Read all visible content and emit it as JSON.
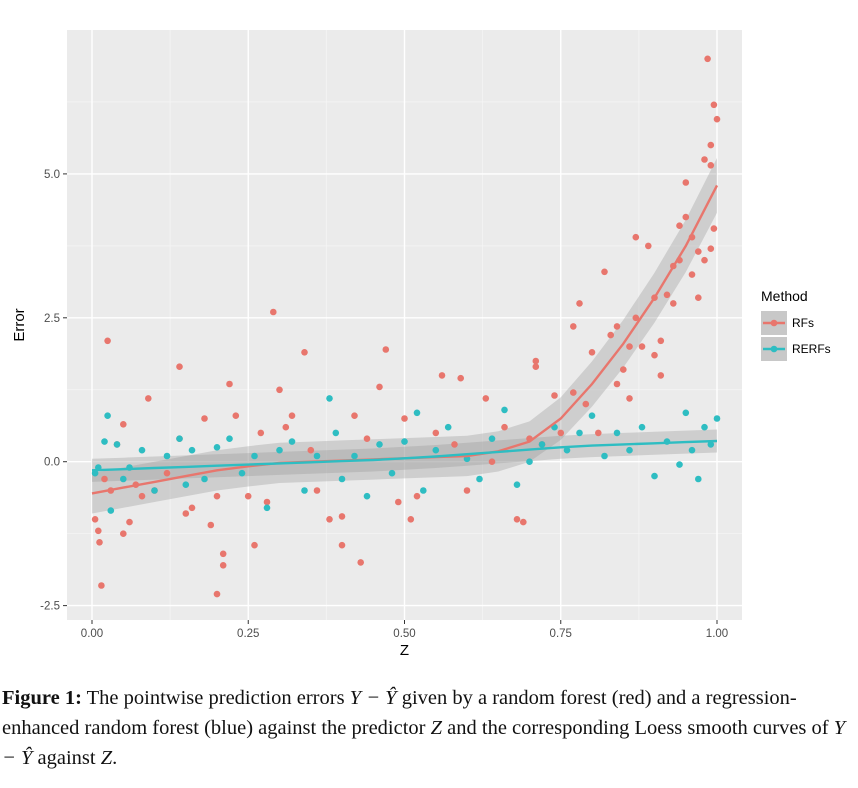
{
  "chart_data": {
    "type": "scatter",
    "xlabel": "Z",
    "ylabel": "Error",
    "xlim": [
      -0.04,
      1.04
    ],
    "ylim": [
      -2.75,
      7.5
    ],
    "xticks": [
      0.0,
      0.25,
      0.5,
      0.75,
      1.0
    ],
    "xtick_labels": [
      "0.00",
      "0.25",
      "0.50",
      "0.75",
      "1.00"
    ],
    "yticks": [
      -2.5,
      0.0,
      2.5,
      5.0
    ],
    "ytick_labels": [
      "-2.5",
      "0.0",
      "2.5",
      "5.0"
    ],
    "grid": true,
    "legend_title": "Method",
    "legend_placement": "right",
    "series": [
      {
        "name": "RFs",
        "color": "#E8766D",
        "points": [
          [
            0.005,
            -1.0
          ],
          [
            0.01,
            -1.2
          ],
          [
            0.012,
            -1.4
          ],
          [
            0.015,
            -2.15
          ],
          [
            0.02,
            -0.3
          ],
          [
            0.025,
            2.1
          ],
          [
            0.03,
            -0.5
          ],
          [
            0.04,
            0.3
          ],
          [
            0.05,
            0.65
          ],
          [
            0.05,
            -1.25
          ],
          [
            0.06,
            -1.05
          ],
          [
            0.07,
            -0.4
          ],
          [
            0.08,
            -0.6
          ],
          [
            0.09,
            1.1
          ],
          [
            0.1,
            -0.5
          ],
          [
            0.12,
            -0.2
          ],
          [
            0.14,
            1.65
          ],
          [
            0.14,
            0.4
          ],
          [
            0.15,
            -0.9
          ],
          [
            0.16,
            -0.8
          ],
          [
            0.18,
            0.75
          ],
          [
            0.19,
            -1.1
          ],
          [
            0.2,
            -0.6
          ],
          [
            0.2,
            -2.3
          ],
          [
            0.21,
            -1.6
          ],
          [
            0.21,
            -1.8
          ],
          [
            0.22,
            1.35
          ],
          [
            0.23,
            0.8
          ],
          [
            0.25,
            -0.6
          ],
          [
            0.26,
            -1.45
          ],
          [
            0.27,
            0.5
          ],
          [
            0.28,
            -0.7
          ],
          [
            0.29,
            2.6
          ],
          [
            0.3,
            1.25
          ],
          [
            0.31,
            0.6
          ],
          [
            0.32,
            0.8
          ],
          [
            0.34,
            1.9
          ],
          [
            0.35,
            0.2
          ],
          [
            0.36,
            -0.5
          ],
          [
            0.38,
            -1.0
          ],
          [
            0.4,
            -0.95
          ],
          [
            0.4,
            -1.45
          ],
          [
            0.42,
            0.8
          ],
          [
            0.43,
            -1.75
          ],
          [
            0.44,
            0.4
          ],
          [
            0.46,
            1.3
          ],
          [
            0.47,
            1.95
          ],
          [
            0.49,
            -0.7
          ],
          [
            0.5,
            0.75
          ],
          [
            0.51,
            -1.0
          ],
          [
            0.52,
            -0.6
          ],
          [
            0.55,
            0.5
          ],
          [
            0.56,
            1.5
          ],
          [
            0.58,
            0.3
          ],
          [
            0.59,
            1.45
          ],
          [
            0.6,
            -0.5
          ],
          [
            0.63,
            1.1
          ],
          [
            0.64,
            0.0
          ],
          [
            0.66,
            0.6
          ],
          [
            0.68,
            -1.0
          ],
          [
            0.69,
            -1.05
          ],
          [
            0.7,
            0.4
          ],
          [
            0.71,
            1.75
          ],
          [
            0.71,
            1.65
          ],
          [
            0.72,
            0.3
          ],
          [
            0.74,
            1.15
          ],
          [
            0.75,
            0.5
          ],
          [
            0.77,
            2.35
          ],
          [
            0.77,
            1.2
          ],
          [
            0.78,
            2.75
          ],
          [
            0.79,
            1.0
          ],
          [
            0.8,
            1.9
          ],
          [
            0.81,
            0.5
          ],
          [
            0.82,
            3.3
          ],
          [
            0.83,
            2.2
          ],
          [
            0.84,
            2.35
          ],
          [
            0.84,
            1.35
          ],
          [
            0.85,
            1.6
          ],
          [
            0.86,
            2.0
          ],
          [
            0.86,
            1.1
          ],
          [
            0.87,
            2.5
          ],
          [
            0.87,
            3.9
          ],
          [
            0.88,
            2.0
          ],
          [
            0.89,
            3.75
          ],
          [
            0.9,
            2.85
          ],
          [
            0.9,
            1.85
          ],
          [
            0.91,
            2.1
          ],
          [
            0.91,
            1.5
          ],
          [
            0.92,
            2.9
          ],
          [
            0.93,
            3.4
          ],
          [
            0.93,
            2.75
          ],
          [
            0.94,
            3.5
          ],
          [
            0.94,
            4.1
          ],
          [
            0.95,
            4.25
          ],
          [
            0.95,
            4.85
          ],
          [
            0.96,
            3.25
          ],
          [
            0.96,
            3.9
          ],
          [
            0.97,
            3.65
          ],
          [
            0.97,
            2.85
          ],
          [
            0.98,
            3.5
          ],
          [
            0.98,
            5.25
          ],
          [
            0.985,
            7.0
          ],
          [
            0.99,
            3.7
          ],
          [
            0.99,
            5.15
          ],
          [
            0.99,
            5.5
          ],
          [
            0.995,
            6.2
          ],
          [
            1.0,
            5.95
          ],
          [
            0.995,
            4.05
          ]
        ],
        "smooth": [
          [
            0.0,
            -0.55
          ],
          [
            0.05,
            -0.45
          ],
          [
            0.1,
            -0.35
          ],
          [
            0.15,
            -0.25
          ],
          [
            0.2,
            -0.15
          ],
          [
            0.25,
            -0.08
          ],
          [
            0.3,
            -0.02
          ],
          [
            0.35,
            0.0
          ],
          [
            0.4,
            0.02
          ],
          [
            0.45,
            0.04
          ],
          [
            0.5,
            0.06
          ],
          [
            0.55,
            0.08
          ],
          [
            0.6,
            0.1
          ],
          [
            0.65,
            0.18
          ],
          [
            0.7,
            0.35
          ],
          [
            0.75,
            0.75
          ],
          [
            0.8,
            1.35
          ],
          [
            0.85,
            2.05
          ],
          [
            0.9,
            2.85
          ],
          [
            0.95,
            3.75
          ],
          [
            1.0,
            4.8
          ]
        ]
      },
      {
        "name": "RERFs",
        "color": "#2EBDC2",
        "points": [
          [
            0.005,
            -0.2
          ],
          [
            0.01,
            -0.1
          ],
          [
            0.02,
            0.35
          ],
          [
            0.025,
            0.8
          ],
          [
            0.03,
            -0.85
          ],
          [
            0.04,
            0.3
          ],
          [
            0.05,
            -0.3
          ],
          [
            0.06,
            -0.1
          ],
          [
            0.08,
            0.2
          ],
          [
            0.1,
            -0.5
          ],
          [
            0.12,
            0.1
          ],
          [
            0.14,
            0.4
          ],
          [
            0.15,
            -0.4
          ],
          [
            0.16,
            0.2
          ],
          [
            0.18,
            -0.3
          ],
          [
            0.2,
            0.25
          ],
          [
            0.22,
            0.4
          ],
          [
            0.24,
            -0.2
          ],
          [
            0.26,
            0.1
          ],
          [
            0.28,
            -0.8
          ],
          [
            0.3,
            0.2
          ],
          [
            0.32,
            0.35
          ],
          [
            0.34,
            -0.5
          ],
          [
            0.36,
            0.1
          ],
          [
            0.38,
            1.1
          ],
          [
            0.39,
            0.5
          ],
          [
            0.4,
            -0.3
          ],
          [
            0.42,
            0.1
          ],
          [
            0.44,
            -0.6
          ],
          [
            0.46,
            0.3
          ],
          [
            0.48,
            -0.2
          ],
          [
            0.5,
            0.35
          ],
          [
            0.52,
            0.85
          ],
          [
            0.53,
            -0.5
          ],
          [
            0.55,
            0.2
          ],
          [
            0.57,
            0.6
          ],
          [
            0.6,
            0.05
          ],
          [
            0.62,
            -0.3
          ],
          [
            0.64,
            0.4
          ],
          [
            0.66,
            0.9
          ],
          [
            0.68,
            -0.4
          ],
          [
            0.7,
            0.0
          ],
          [
            0.72,
            0.3
          ],
          [
            0.74,
            0.6
          ],
          [
            0.76,
            0.2
          ],
          [
            0.78,
            0.5
          ],
          [
            0.8,
            0.8
          ],
          [
            0.82,
            0.1
          ],
          [
            0.84,
            0.5
          ],
          [
            0.86,
            0.2
          ],
          [
            0.88,
            0.6
          ],
          [
            0.9,
            -0.25
          ],
          [
            0.92,
            0.35
          ],
          [
            0.94,
            -0.05
          ],
          [
            0.95,
            0.85
          ],
          [
            0.96,
            0.2
          ],
          [
            0.97,
            -0.3
          ],
          [
            0.98,
            0.6
          ],
          [
            0.99,
            0.3
          ],
          [
            1.0,
            0.75
          ]
        ],
        "smooth": [
          [
            0.0,
            -0.15
          ],
          [
            0.05,
            -0.13
          ],
          [
            0.1,
            -0.11
          ],
          [
            0.15,
            -0.09
          ],
          [
            0.2,
            -0.07
          ],
          [
            0.25,
            -0.05
          ],
          [
            0.3,
            -0.03
          ],
          [
            0.35,
            -0.01
          ],
          [
            0.4,
            0.01
          ],
          [
            0.45,
            0.03
          ],
          [
            0.5,
            0.06
          ],
          [
            0.55,
            0.09
          ],
          [
            0.6,
            0.13
          ],
          [
            0.65,
            0.17
          ],
          [
            0.7,
            0.21
          ],
          [
            0.75,
            0.25
          ],
          [
            0.8,
            0.28
          ],
          [
            0.85,
            0.3
          ],
          [
            0.9,
            0.32
          ],
          [
            0.95,
            0.34
          ],
          [
            1.0,
            0.36
          ]
        ]
      }
    ]
  },
  "caption": {
    "label": "Figure 1:",
    "part1": " The pointwise prediction errors ",
    "math1": "Y − Ŷ",
    "part2": " given by a random forest (red) and a regression-enhanced random forest (blue) against the predictor ",
    "math2": "Z",
    "part3": " and the corresponding Loess smooth curves of ",
    "math3": "Y − Ŷ",
    "part4": " against ",
    "math4": "Z",
    "part5": "."
  }
}
